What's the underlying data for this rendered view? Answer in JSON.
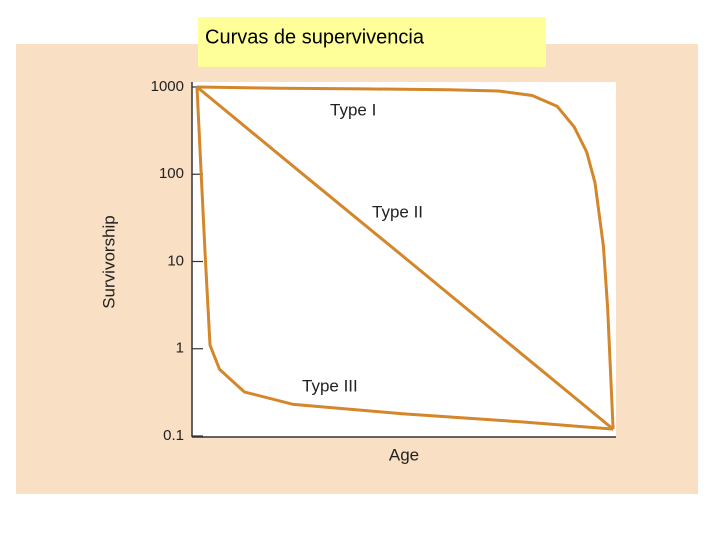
{
  "slide_title": "Curvas de supervivencia",
  "chart_data": {
    "type": "line",
    "x_label": "Age",
    "y_label": "Survivorship",
    "yscale": "log",
    "xlim": [
      0,
      100
    ],
    "ylim": [
      0.1,
      1000
    ],
    "yticks": [
      0.1,
      1,
      10,
      100,
      1000
    ],
    "series": [
      {
        "name": "Type I",
        "color": "#d4862a",
        "x": [
          0,
          20,
          40,
          60,
          72,
          80,
          86,
          90,
          93,
          95,
          97,
          98,
          99.3
        ],
        "values": [
          1000,
          970,
          950,
          930,
          900,
          800,
          600,
          350,
          180,
          80,
          15,
          3,
          0.12
        ]
      },
      {
        "name": "Type II",
        "color": "#d4862a",
        "x": [
          0,
          25.3,
          50.7,
          76,
          99.3
        ],
        "values": [
          1000,
          100,
          10,
          1,
          0.12
        ]
      },
      {
        "name": "Type III",
        "color": "#d4862a",
        "x": [
          0,
          1,
          1.9,
          3.1,
          5.4,
          11.3,
          23,
          49,
          77.5,
          99.3
        ],
        "values": [
          1000,
          100,
          13,
          1.1,
          0.58,
          0.32,
          0.23,
          0.18,
          0.145,
          0.12
        ]
      }
    ]
  }
}
